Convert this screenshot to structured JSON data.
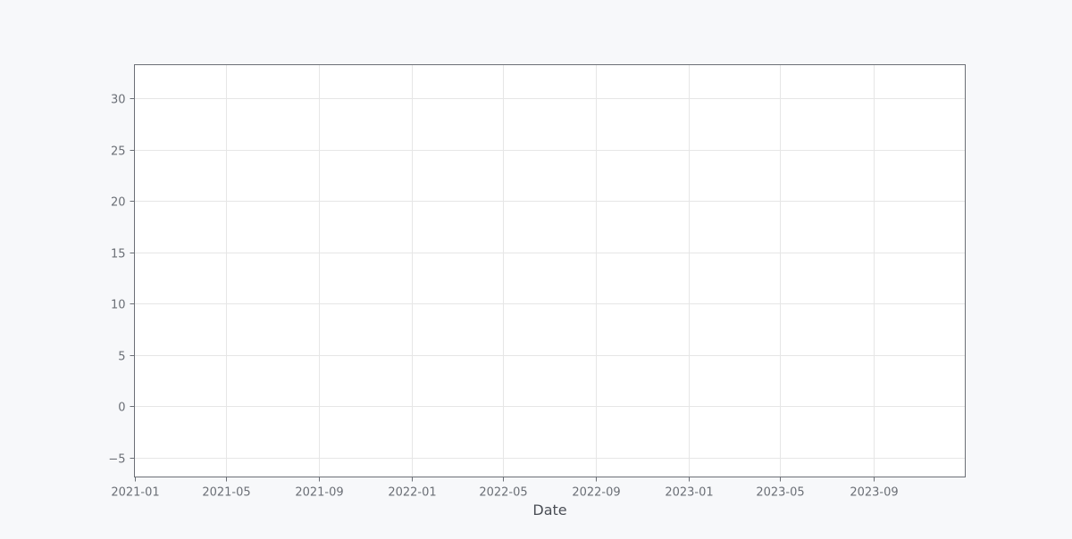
{
  "chart_data": {
    "type": "line",
    "title": "",
    "xlabel": "Date",
    "ylabel": "",
    "x_axis_type": "date",
    "xlim": [
      "2021-01-01",
      "2023-12-31"
    ],
    "ylim": [
      -6.9,
      33.3
    ],
    "x_ticks": [
      "2021-01",
      "2021-05",
      "2021-09",
      "2022-01",
      "2022-05",
      "2022-09",
      "2023-01",
      "2023-05",
      "2023-09"
    ],
    "y_ticks": [
      -5,
      0,
      5,
      10,
      15,
      20,
      25,
      30
    ],
    "y_tick_labels": [
      "−5",
      "0",
      "5",
      "10",
      "15",
      "20",
      "25",
      "30"
    ],
    "grid": true,
    "series": [],
    "colors": {
      "background": "#f7f8fa",
      "plot_background": "#ffffff",
      "grid": "#e6e6e6",
      "axis": "#6b6f76",
      "tick_text": "#6b6f76",
      "label_text": "#4a4e55"
    }
  }
}
